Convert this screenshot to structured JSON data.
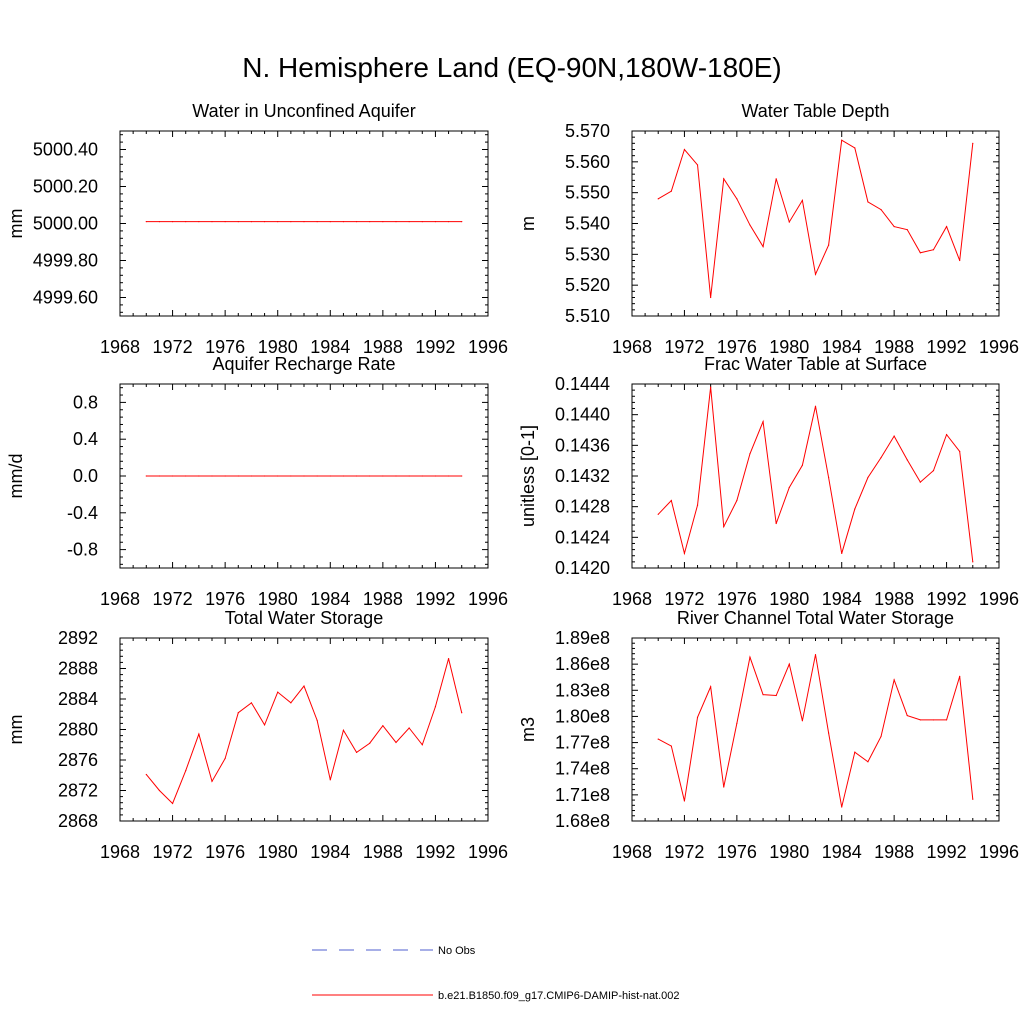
{
  "title": "N. Hemisphere Land (EQ-90N,180W-180E)",
  "colors": {
    "model": "#ff0000",
    "obs": "#4f5fcf",
    "axes": "#000000"
  },
  "legend": [
    {
      "label": "No Obs",
      "style": "dashed",
      "color": "#4f5fcf"
    },
    {
      "label": "b.e21.B1850.f09_g17.CMIP6-DAMIP-hist-nat.002",
      "style": "solid",
      "color": "#ff0000"
    }
  ],
  "chart_data": [
    {
      "type": "line",
      "title": "Water in Unconfined Aquifer",
      "ylabel": "mm",
      "xlim": [
        1968,
        1996
      ],
      "xticks": [
        "1968",
        "1972",
        "1976",
        "1980",
        "1984",
        "1988",
        "1992",
        "1996"
      ],
      "ylim": [
        4999.5,
        5000.5
      ],
      "yticks": [
        "4999.60",
        "4999.80",
        "5000.00",
        "5000.20",
        "5000.40"
      ],
      "x": [
        1970,
        1971,
        1972,
        1973,
        1974,
        1975,
        1976,
        1977,
        1978,
        1979,
        1980,
        1981,
        1982,
        1983,
        1984,
        1985,
        1986,
        1987,
        1988,
        1989,
        1990,
        1991,
        1992,
        1993,
        1994
      ],
      "series": [
        {
          "values": [
            5000.01,
            5000.01,
            5000.01,
            5000.01,
            5000.01,
            5000.01,
            5000.01,
            5000.01,
            5000.01,
            5000.01,
            5000.01,
            5000.01,
            5000.01,
            5000.01,
            5000.01,
            5000.01,
            5000.01,
            5000.01,
            5000.01,
            5000.01,
            5000.01,
            5000.01,
            5000.01,
            5000.01,
            5000.01
          ]
        }
      ]
    },
    {
      "type": "line",
      "title": "Water Table Depth",
      "ylabel": "m",
      "xlim": [
        1968,
        1996
      ],
      "xticks": [
        "1968",
        "1972",
        "1976",
        "1980",
        "1984",
        "1988",
        "1992",
        "1996"
      ],
      "ylim": [
        5.51,
        5.57
      ],
      "yticks": [
        "5.510",
        "5.520",
        "5.530",
        "5.540",
        "5.550",
        "5.560",
        "5.570"
      ],
      "x": [
        1970,
        1971,
        1972,
        1973,
        1974,
        1975,
        1976,
        1977,
        1978,
        1979,
        1980,
        1981,
        1982,
        1983,
        1984,
        1985,
        1986,
        1987,
        1988,
        1989,
        1990,
        1991,
        1992,
        1993,
        1994
      ],
      "series": [
        {
          "values": [
            5.548,
            5.5505,
            5.564,
            5.559,
            5.516,
            5.5545,
            5.548,
            5.5395,
            5.5325,
            5.5545,
            5.5405,
            5.5475,
            5.5235,
            5.533,
            5.567,
            5.5645,
            5.547,
            5.5445,
            5.539,
            5.538,
            5.5305,
            5.5315,
            5.539,
            5.528,
            5.566
          ]
        }
      ]
    },
    {
      "type": "line",
      "title": "Aquifer Recharge Rate",
      "ylabel": "mm/d",
      "xlim": [
        1968,
        1996
      ],
      "xticks": [
        "1968",
        "1972",
        "1976",
        "1980",
        "1984",
        "1988",
        "1992",
        "1996"
      ],
      "ylim": [
        -1.0,
        1.0
      ],
      "yticks": [
        "-0.8",
        "-0.4",
        "0.0",
        "0.4",
        "0.8"
      ],
      "x": [
        1970,
        1971,
        1972,
        1973,
        1974,
        1975,
        1976,
        1977,
        1978,
        1979,
        1980,
        1981,
        1982,
        1983,
        1984,
        1985,
        1986,
        1987,
        1988,
        1989,
        1990,
        1991,
        1992,
        1993,
        1994
      ],
      "series": [
        {
          "values": [
            0,
            0,
            0,
            0,
            0,
            0,
            0,
            0,
            0,
            0,
            0,
            0,
            0,
            0,
            0,
            0,
            0,
            0,
            0,
            0,
            0,
            0,
            0,
            0,
            0
          ]
        }
      ]
    },
    {
      "type": "line",
      "title": "Frac Water Table at Surface",
      "ylabel": "unitless [0-1]",
      "xlim": [
        1968,
        1996
      ],
      "xticks": [
        "1968",
        "1972",
        "1976",
        "1980",
        "1984",
        "1988",
        "1992",
        "1996"
      ],
      "ylim": [
        0.142,
        0.1444
      ],
      "yticks": [
        "0.1420",
        "0.1424",
        "0.1428",
        "0.1432",
        "0.1436",
        "0.1440",
        "0.1444"
      ],
      "x": [
        1970,
        1971,
        1972,
        1973,
        1974,
        1975,
        1976,
        1977,
        1978,
        1979,
        1980,
        1981,
        1982,
        1983,
        1984,
        1985,
        1986,
        1987,
        1988,
        1989,
        1990,
        1991,
        1992,
        1993,
        1994
      ],
      "series": [
        {
          "values": [
            0.1427,
            0.14288,
            0.14219,
            0.14282,
            0.14436,
            0.14254,
            0.14288,
            0.14349,
            0.14391,
            0.14258,
            0.14305,
            0.14334,
            0.14411,
            0.14318,
            0.14219,
            0.14277,
            0.14318,
            0.14344,
            0.14372,
            0.14341,
            0.14312,
            0.14327,
            0.14374,
            0.14352,
            0.14208
          ]
        }
      ]
    },
    {
      "type": "line",
      "title": "Total Water Storage",
      "ylabel": "mm",
      "xlim": [
        1968,
        1996
      ],
      "xticks": [
        "1968",
        "1972",
        "1976",
        "1980",
        "1984",
        "1988",
        "1992",
        "1996"
      ],
      "ylim": [
        2868,
        2892
      ],
      "yticks": [
        "2868",
        "2872",
        "2876",
        "2880",
        "2884",
        "2888",
        "2892"
      ],
      "x": [
        1970,
        1971,
        1972,
        1973,
        1974,
        1975,
        1976,
        1977,
        1978,
        1979,
        1980,
        1981,
        1982,
        1983,
        1984,
        1985,
        1986,
        1987,
        1988,
        1989,
        1990,
        1991,
        1992,
        1993,
        1994
      ],
      "series": [
        {
          "values": [
            2874.1,
            2872.0,
            2870.3,
            2874.6,
            2879.4,
            2873.2,
            2876.2,
            2882.2,
            2883.5,
            2880.6,
            2884.9,
            2883.5,
            2885.7,
            2881.2,
            2873.4,
            2879.9,
            2877.0,
            2878.2,
            2880.5,
            2878.3,
            2880.2,
            2878.0,
            2883.0,
            2889.3,
            2882.2
          ]
        }
      ]
    },
    {
      "type": "line",
      "title": "River Channel Total Water Storage",
      "ylabel": "m3",
      "xlim": [
        1968,
        1996
      ],
      "xticks": [
        "1968",
        "1972",
        "1976",
        "1980",
        "1984",
        "1988",
        "1992",
        "1996"
      ],
      "ylim": [
        168000000,
        189000000
      ],
      "yticks": [
        "1.68e8",
        "1.71e8",
        "1.74e8",
        "1.77e8",
        "1.80e8",
        "1.83e8",
        "1.86e8",
        "1.89e8"
      ],
      "x": [
        1970,
        1971,
        1972,
        1973,
        1974,
        1975,
        1976,
        1977,
        1978,
        1979,
        1980,
        1981,
        1982,
        1983,
        1984,
        1985,
        1986,
        1987,
        1988,
        1989,
        1990,
        1991,
        1992,
        1993,
        1994
      ],
      "series": [
        {
          "values": [
            177400000,
            176600000,
            170300000,
            179900000,
            183400000,
            171900000,
            179200000,
            186800000,
            182500000,
            182400000,
            186000000,
            179500000,
            187100000,
            178100000,
            169600000,
            175900000,
            174800000,
            177700000,
            184200000,
            180100000,
            179600000,
            179600000,
            179600000,
            184600000,
            170500000
          ]
        }
      ]
    }
  ]
}
